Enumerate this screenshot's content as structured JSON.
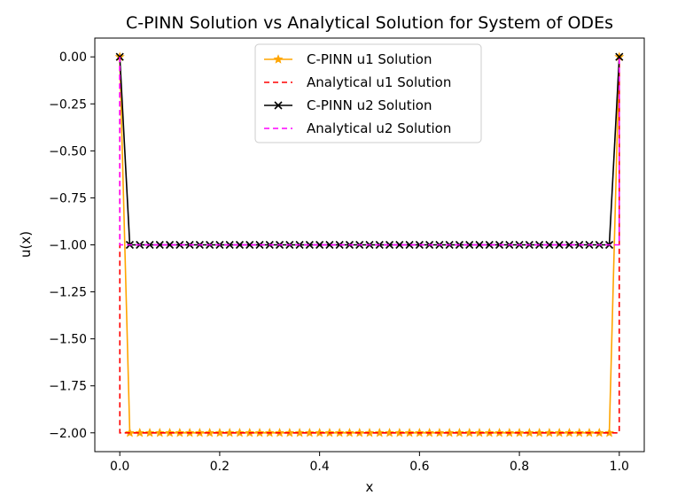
{
  "chart_data": {
    "type": "line",
    "title": "C-PINN Solution vs Analytical Solution for System of ODEs",
    "xlabel": "x",
    "ylabel": "u(x)",
    "xlim": [
      -0.05,
      1.05
    ],
    "ylim": [
      -2.1,
      0.1
    ],
    "xticks": [
      0.0,
      0.2,
      0.4,
      0.6,
      0.8,
      1.0
    ],
    "xtick_labels": [
      "0.0",
      "0.2",
      "0.4",
      "0.6",
      "0.8",
      "1.0"
    ],
    "yticks": [
      0.0,
      -0.25,
      -0.5,
      -0.75,
      -1.0,
      -1.25,
      -1.5,
      -1.75,
      -2.0
    ],
    "ytick_labels": [
      "0.00",
      "−0.25",
      "−0.50",
      "−0.75",
      "−1.00",
      "−1.25",
      "−1.50",
      "−1.75",
      "−2.00"
    ],
    "grid": false,
    "legend_position": "top-center",
    "series": [
      {
        "name": "C-PINN u1 Solution",
        "color": "#ffa500",
        "style": "solid",
        "marker": "star",
        "x_grid": {
          "start": 0.0,
          "stop": 1.0,
          "count": 51
        },
        "interior_value": -2.0,
        "boundary_values": [
          0.0,
          0.0
        ]
      },
      {
        "name": "Analytical u1 Solution",
        "color": "#ff0000",
        "style": "dashed",
        "marker": "none",
        "x": [
          0.0,
          0.0001,
          0.9999,
          1.0
        ],
        "y": [
          0.0,
          -2.0,
          -2.0,
          0.0
        ]
      },
      {
        "name": "C-PINN u2 Solution",
        "color": "#000000",
        "style": "solid",
        "marker": "x",
        "x_grid": {
          "start": 0.0,
          "stop": 1.0,
          "count": 51
        },
        "interior_value": -1.0,
        "boundary_values": [
          0.0,
          0.0
        ]
      },
      {
        "name": "Analytical u2 Solution",
        "color": "#ff00ff",
        "style": "dashed",
        "marker": "none",
        "x": [
          0.0,
          0.0001,
          0.9999,
          1.0
        ],
        "y": [
          0.0,
          -1.0,
          -1.0,
          0.0
        ]
      }
    ]
  }
}
